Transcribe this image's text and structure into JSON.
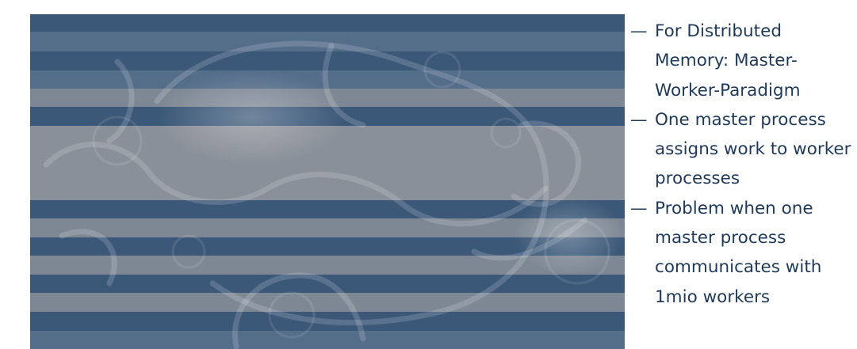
{
  "figure": {
    "image": "fractal-background-icon"
  },
  "bullets": {
    "items": [
      {
        "dash": "—",
        "text": "For Distributed Memory: Master-Worker-Paradigm"
      },
      {
        "dash": "—",
        "text": "One master process assigns work to worker processes"
      },
      {
        "dash": "—",
        "text": "Problem when one master process communicates with 1mio workers"
      }
    ]
  }
}
